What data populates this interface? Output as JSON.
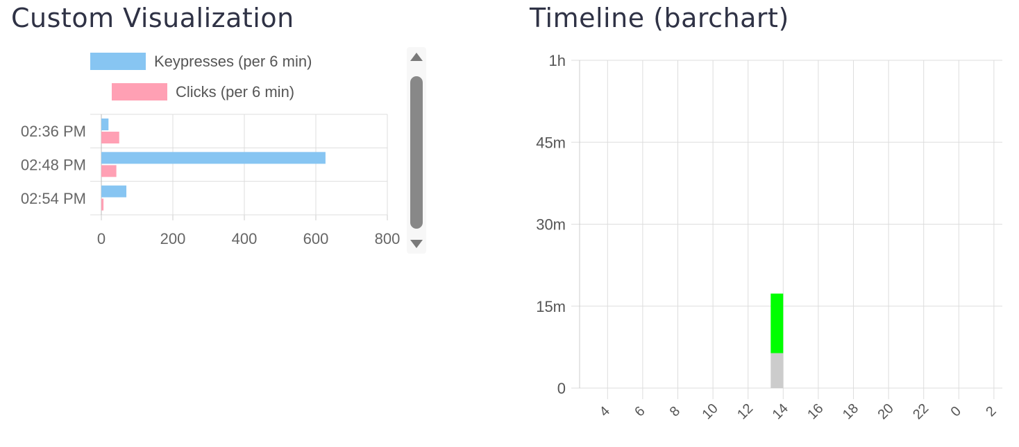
{
  "panels": {
    "left_title": "Custom Visualization",
    "right_title": "Timeline (barchart)"
  },
  "chart_data": [
    {
      "type": "bar",
      "orientation": "horizontal",
      "title": "Custom Visualization",
      "categories": [
        "02:36 PM",
        "02:48 PM",
        "02:54 PM"
      ],
      "series": [
        {
          "name": "Keypresses (per 6 min)",
          "values": [
            20,
            627,
            70
          ],
          "color": "#87c5f2"
        },
        {
          "name": "Clicks (per 6 min)",
          "values": [
            50,
            42,
            6
          ],
          "color": "#ffa0b4"
        }
      ],
      "xlim": [
        0,
        800
      ],
      "xticks": [
        "0",
        "200",
        "400",
        "600",
        "800"
      ],
      "grid": true,
      "legend": "top"
    },
    {
      "type": "bar",
      "stacked": true,
      "title": "Timeline (barchart)",
      "categories": [
        "4",
        "6",
        "8",
        "10",
        "12",
        "14",
        "16",
        "18",
        "20",
        "22",
        "0",
        "2"
      ],
      "yticks": [
        "0",
        "15m",
        "30m",
        "45m",
        "1h"
      ],
      "ylim": [
        0,
        60
      ],
      "yunit": "minutes",
      "bars": [
        {
          "category": "14",
          "segments": [
            {
              "value": 6.4,
              "color": "#cccccc"
            },
            {
              "value": 10.9,
              "color": "#00ff00"
            }
          ]
        }
      ],
      "grid": true
    }
  ]
}
